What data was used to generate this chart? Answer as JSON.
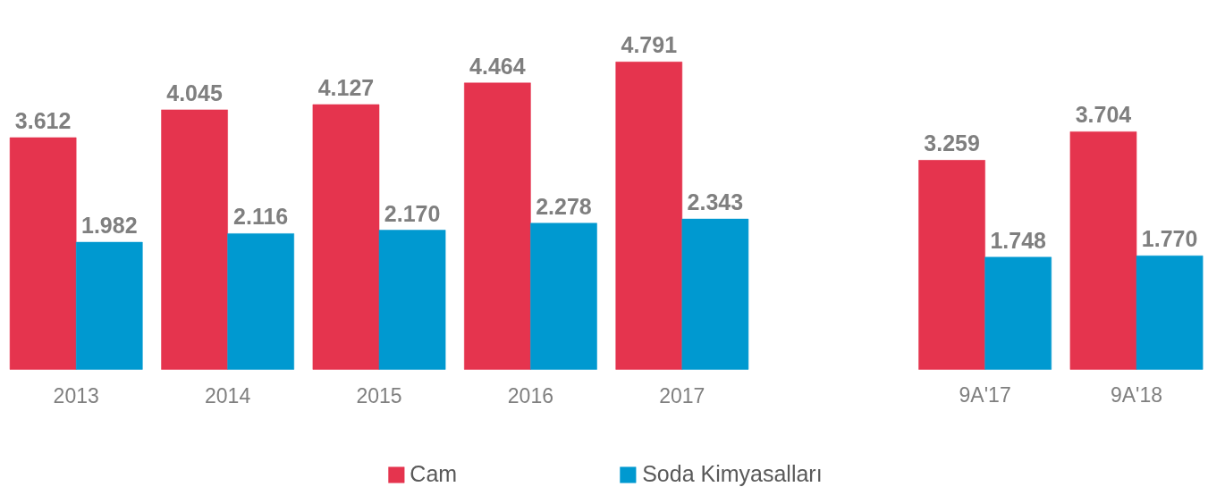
{
  "chart_data": {
    "type": "bar",
    "categories": [
      "2013",
      "2014",
      "2015",
      "2016",
      "2017",
      null,
      "9A'17",
      "9A'18"
    ],
    "series": [
      {
        "name": "Cam",
        "color": "#e5344e",
        "values": [
          3.612,
          4.045,
          4.127,
          4.464,
          4.791,
          null,
          3.259,
          3.704
        ],
        "value_labels": [
          "3.612",
          "4.045",
          "4.127",
          "4.464",
          "4.791",
          null,
          "3.259",
          "3.704"
        ]
      },
      {
        "name": "Soda Kimyasalları",
        "color": "#0099d0",
        "values": [
          1.982,
          2.116,
          2.17,
          2.278,
          2.343,
          null,
          1.748,
          1.77
        ],
        "value_labels": [
          "1.982",
          "2.116",
          "2.170",
          "2.278",
          "2.343",
          null,
          "1.748",
          "1.770"
        ]
      }
    ],
    "legend": "bottom"
  }
}
